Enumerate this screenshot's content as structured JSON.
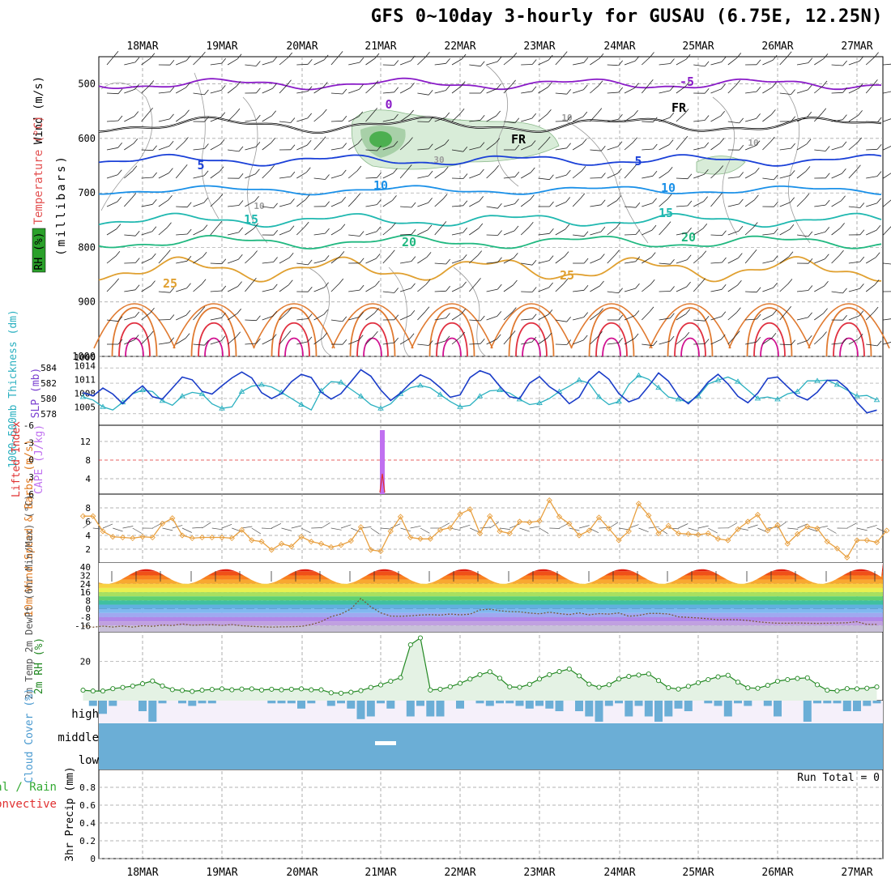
{
  "title": "GFS 0~10day 3-hourly for GUSAU (6.75E, 12.25N)",
  "dates": [
    "18MAR",
    "19MAR",
    "20MAR",
    "21MAR",
    "22MAR",
    "23MAR",
    "24MAR",
    "25MAR",
    "26MAR",
    "27MAR"
  ],
  "run_total": "Run Total = 0",
  "colors": {
    "grid": "#9a9a9a",
    "thickness": "#2ab0c0",
    "slp": "#1a3cc8",
    "lifted_index": "#e03030",
    "cape": "#c070f0",
    "wind_speed": "#e8a040",
    "rh2m": "#228822",
    "rh2m_fill": "#e4f2e4",
    "cloud": "#6baed6",
    "cloud_bg": "#f5f0fa",
    "temp_m5": "#8a1cc8",
    "temp_fr": "#000000",
    "temp_5": "#1a40d8",
    "temp_10": "#1a90e8",
    "temp_15": "#20b8b0",
    "temp_20": "#20b880",
    "temp_25": "#e0a030",
    "temp_30": "#e07a30",
    "temp_35": "#e03040",
    "temp_40": "#d01090"
  },
  "chart_data": [
    {
      "panel": "cross-section",
      "type": "line",
      "ylabel_parts": [
        "Wind (m/s)",
        "Temperature (°C)",
        "RH (%)"
      ],
      "ylabel_right": "(millibars)",
      "yticks": [
        "500",
        "600",
        "700",
        "800",
        "900",
        "1000"
      ],
      "ylim": [
        450,
        1000
      ],
      "isotherm_labels": [
        "-5",
        "FR",
        "FR",
        "0",
        "5",
        "5",
        "10",
        "10",
        "15",
        "15",
        "20",
        "20",
        "25",
        "25",
        "10",
        "10",
        "30",
        "10"
      ],
      "isotherms": [
        {
          "label": "-5",
          "color": "temp_m5",
          "mean_pressure": 500
        },
        {
          "label": "FR",
          "color": "temp_fr",
          "mean_pressure": 575
        },
        {
          "label": "5",
          "color": "temp_5",
          "mean_pressure": 640
        },
        {
          "label": "10",
          "color": "temp_10",
          "mean_pressure": 695
        },
        {
          "label": "15",
          "color": "temp_15",
          "mean_pressure": 750
        },
        {
          "label": "20",
          "color": "temp_20",
          "mean_pressure": 790
        },
        {
          "label": "25",
          "color": "temp_25",
          "mean_pressure": 840
        }
      ]
    },
    {
      "panel": "thickness-slp",
      "type": "line",
      "ylabel_left": "1000~500mb Thickness (dm)",
      "ylabel_right": "SLP (mb)",
      "yticks_left": [
        "584",
        "582",
        "580",
        "578"
      ],
      "yticks_right": [
        "1014",
        "1011",
        "1008",
        "1005"
      ],
      "series": [
        {
          "name": "1000~500mb Thickness (dm)",
          "values": [
            580.2,
            579.8,
            578.9,
            578.5,
            579.5,
            580.6,
            581.1,
            580.9,
            579.7,
            579.1,
            580.3,
            580.8,
            580.6,
            579.3,
            578.7,
            578.9,
            580.9,
            581.6,
            581.8,
            581.5,
            580.8,
            580.0,
            579.2,
            578.5,
            581.0,
            582.2,
            582.1,
            581.2,
            580.3,
            579.2,
            578.7,
            579.3,
            580.6,
            581.4,
            581.7,
            581.4,
            580.5,
            579.6,
            578.9,
            579.1,
            580.3,
            581.0,
            581.1,
            580.7,
            579.9,
            579.2,
            579.4,
            580.0,
            580.9,
            581.6,
            582.4,
            582.0,
            580.2,
            579.2,
            579.6,
            581.8,
            583.0,
            582.5,
            581.4,
            580.2,
            579.9,
            579.5,
            580.3,
            581.9,
            582.4,
            582.8,
            582.2,
            581.1,
            580.0,
            580.2,
            579.9,
            580.6,
            580.9,
            582.3,
            582.3,
            582.4,
            581.8,
            581.1,
            580.3,
            580.4,
            579.8
          ]
        },
        {
          "name": "SLP (mb)",
          "values": [
            1008.1,
            1007.4,
            1009.1,
            1007.8,
            1005.7,
            1007.9,
            1009.6,
            1007.2,
            1006.7,
            1009.1,
            1011.5,
            1010.9,
            1008.4,
            1007.8,
            1009.6,
            1011.3,
            1012.6,
            1011.3,
            1008.1,
            1006.8,
            1007.9,
            1010.5,
            1012.1,
            1011.4,
            1008.2,
            1006.7,
            1007.9,
            1010.5,
            1013.1,
            1011.7,
            1008.7,
            1006.4,
            1008.0,
            1010.2,
            1012.0,
            1011.0,
            1009.2,
            1007.1,
            1007.6,
            1011.4,
            1012.9,
            1012.1,
            1009.5,
            1007.2,
            1006.8,
            1010.2,
            1011.6,
            1009.4,
            1008.0,
            1005.7,
            1007.1,
            1010.8,
            1012.7,
            1011.0,
            1007.9,
            1006.1,
            1006.9,
            1009.5,
            1012.4,
            1010.6,
            1007.4,
            1005.7,
            1007.7,
            1010.4,
            1012.1,
            1010.0,
            1007.3,
            1005.9,
            1008.0,
            1011.2,
            1011.5,
            1009.4,
            1007.4,
            1006.5,
            1008.2,
            1010.8,
            1010.8,
            1009.0,
            1006.0,
            1003.7,
            1004.3
          ]
        }
      ]
    },
    {
      "panel": "cape-li",
      "type": "bar",
      "ylabel_left": "Lifted Index",
      "ylabel_right": "CAPE (J/kg)",
      "yticks_left": [
        "-6",
        "-3",
        "0",
        "3",
        "6"
      ],
      "yticks_right": [
        "12",
        "8",
        "4"
      ],
      "cape_spike": {
        "x_index": 30,
        "value": 16
      }
    },
    {
      "panel": "wind10m",
      "type": "line",
      "ylabel": "10m Wind Speed & Barbs (m/s)",
      "yticks": [
        "8",
        "6",
        "4",
        "2"
      ],
      "ylim": [
        0,
        10
      ],
      "series": [
        {
          "name": "10m Wind Speed (m/s)",
          "values": [
            6.8,
            6.8,
            4.6,
            3.8,
            3.7,
            3.6,
            3.8,
            3.7,
            5.7,
            6.5,
            4.0,
            3.6,
            3.7,
            3.7,
            3.7,
            3.6,
            4.8,
            3.3,
            3.1,
            1.9,
            2.8,
            2.4,
            3.8,
            3.1,
            2.8,
            2.3,
            2.6,
            3.2,
            5.2,
            1.9,
            1.7,
            4.6,
            6.7,
            3.7,
            3.5,
            3.5,
            4.8,
            5.1,
            7.1,
            7.8,
            4.3,
            6.8,
            4.6,
            4.3,
            6.0,
            5.9,
            6.1,
            9.1,
            6.7,
            5.7,
            4.0,
            4.7,
            6.6,
            5.0,
            3.3,
            4.6,
            8.6,
            6.9,
            4.3,
            5.4,
            4.3,
            4.2,
            4.1,
            4.3,
            3.5,
            3.3,
            4.9,
            6.0,
            7.0,
            4.7,
            5.5,
            2.8,
            4.2,
            5.3,
            5.0,
            3.1,
            2.1,
            0.8,
            3.3,
            3.3,
            3.0,
            4.7
          ]
        }
      ]
    },
    {
      "panel": "temp2m",
      "type": "area",
      "ylabel": "2m Temp 2m DewPt (6hr Min/Max) (°C)",
      "yticks": [
        "40",
        "32",
        "24",
        "16",
        "8",
        "0",
        "-8",
        "-16"
      ],
      "ylim": [
        -22,
        44
      ],
      "temp_max": 38,
      "temp_min": 24,
      "dewpt_values": [
        -16.5,
        -17.6,
        -16.6,
        -17.4,
        -16.4,
        -17.5,
        -16.2,
        -16.8,
        -15.5,
        -16.0,
        -14.5,
        -15.8,
        -15.4,
        -15.2,
        -15.9,
        -15.1,
        -16.2,
        -16.8,
        -17.2,
        -17.5,
        -17.3,
        -17.1,
        -16.8,
        -15.1,
        -12.2,
        -7.5,
        -4.9,
        0.0,
        10.0,
        2.0,
        -3.8,
        -6.9,
        -7.1,
        -6.7,
        -5.9,
        -5.5,
        -6.0,
        -4.9,
        -5.8,
        -5.1,
        -1.0,
        -0.3,
        -1.8,
        -2.7,
        -2.9,
        -4.0,
        -4.8,
        -3.2,
        -4.5,
        -5.5,
        -3.8,
        -5.8,
        -4.5,
        -5.0,
        -3.9,
        -7.1,
        -6.3,
        -4.4,
        -4.4,
        -4.9,
        -7.6,
        -8.2,
        -8.7,
        -9.6,
        -10.4,
        -10.3,
        -10.4,
        -11.1,
        -12.4,
        -13.2,
        -13.8,
        -13.8,
        -13.5,
        -13.8,
        -13.9,
        -13.8,
        -13.6,
        -13.3,
        -12.3,
        -14.9,
        -14.9
      ]
    },
    {
      "panel": "rh2m",
      "type": "area",
      "ylabel": "2m RH (%)",
      "ytick": "20",
      "ylim": [
        0,
        35
      ],
      "series": [
        {
          "name": "2m RH (%)",
          "values": [
            5.3,
            4.9,
            4.9,
            6.1,
            6.7,
            7.4,
            8.6,
            10.0,
            7.5,
            5.6,
            5.2,
            4.7,
            5.3,
            5.7,
            6.0,
            5.5,
            5.9,
            6.0,
            5.4,
            5.8,
            5.5,
            5.8,
            6.0,
            5.5,
            5.5,
            4.0,
            3.8,
            4.3,
            5.1,
            6.7,
            8.0,
            9.9,
            11.7,
            28.4,
            31.9,
            5.4,
            5.8,
            7.1,
            8.8,
            11.0,
            13.2,
            14.7,
            11.4,
            7.0,
            6.8,
            8.3,
            11.0,
            13.2,
            14.8,
            16.1,
            12.6,
            8.4,
            6.8,
            8.1,
            11.0,
            12.3,
            13.0,
            13.6,
            10.2,
            6.6,
            5.9,
            7.3,
            9.1,
            10.7,
            12.1,
            12.9,
            9.4,
            6.5,
            6.3,
            7.8,
            9.9,
            10.7,
            11.3,
            11.6,
            8.1,
            5.3,
            5.0,
            6.1,
            6.0,
            6.3,
            7.0
          ]
        }
      ]
    },
    {
      "panel": "cloud",
      "type": "bar",
      "ylabel": "Cloud Cover (%)",
      "levels": [
        "high",
        "middle",
        "low"
      ],
      "high_values": [
        0,
        10,
        25,
        10,
        0,
        0,
        20,
        40,
        5,
        0,
        5,
        10,
        5,
        5,
        0,
        0,
        0,
        0,
        0,
        5,
        5,
        5,
        15,
        5,
        0,
        10,
        5,
        15,
        35,
        30,
        5,
        15,
        0,
        30,
        10,
        30,
        30,
        0,
        15,
        0,
        5,
        10,
        5,
        5,
        10,
        15,
        10,
        15,
        20,
        0,
        20,
        30,
        40,
        10,
        5,
        30,
        10,
        30,
        40,
        30,
        15,
        20,
        0,
        5,
        10,
        30,
        5,
        10,
        0,
        10,
        30,
        0,
        0,
        40,
        5,
        5,
        5,
        20,
        20,
        10,
        5
      ]
    },
    {
      "panel": "precip",
      "type": "bar",
      "ylabel_parts": [
        "Total / Rain",
        "Convective",
        "3hr Precip (mm)"
      ],
      "yticks": [
        "0.8",
        "0.6",
        "0.4",
        "0.2",
        "0"
      ],
      "ylim": [
        0,
        1
      ]
    }
  ]
}
